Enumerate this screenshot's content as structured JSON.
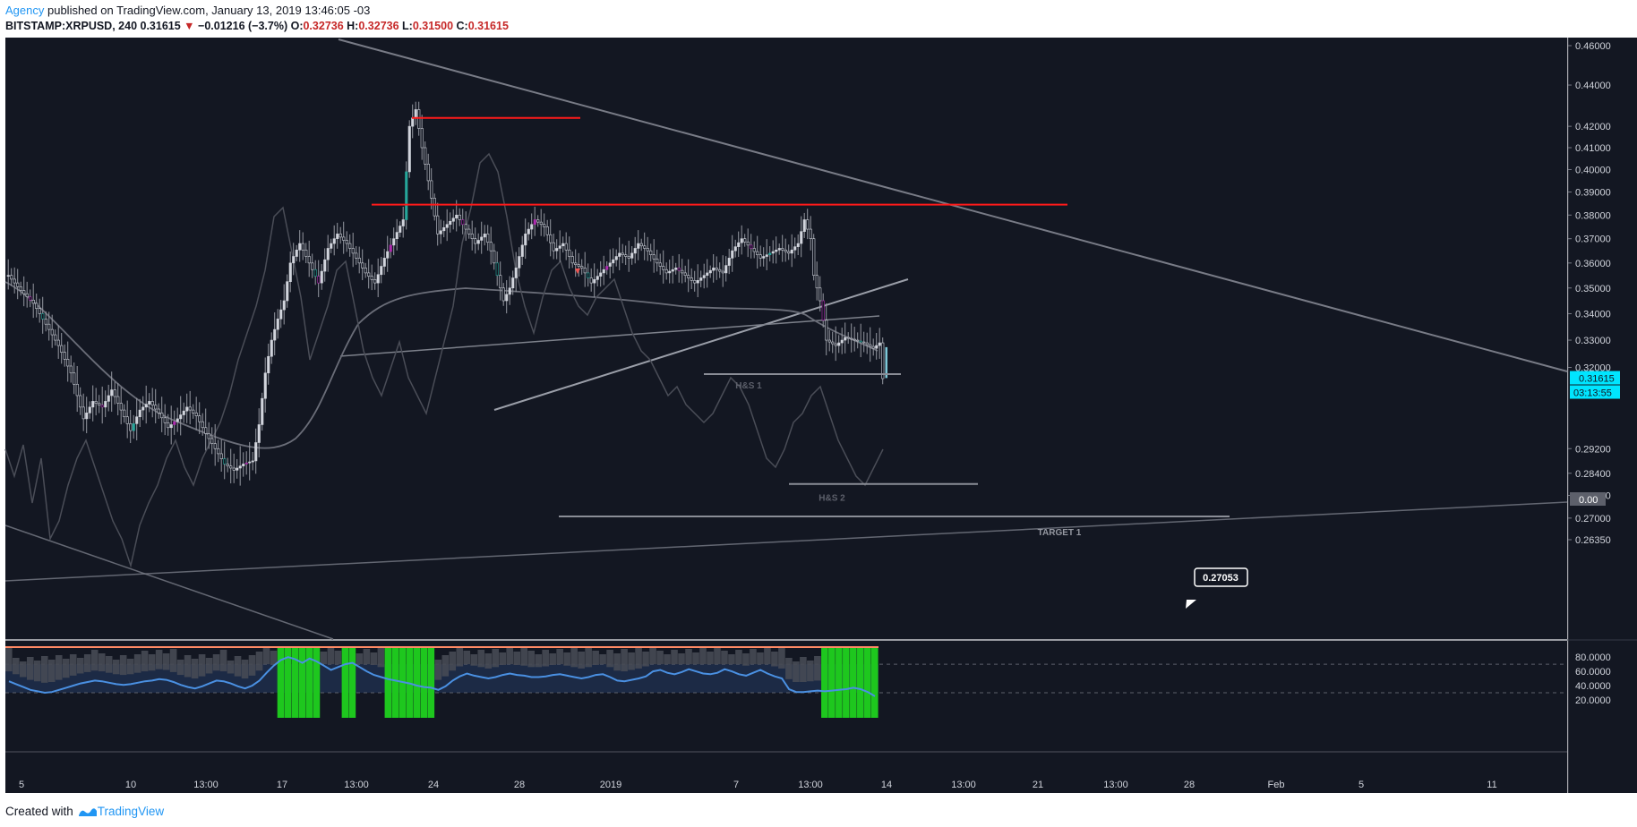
{
  "header": {
    "author": "Agency",
    "published_text": " published on TradingView.com, January 13, 2019 13:46:05 -03"
  },
  "symbol_bar": {
    "symbol": "BITSTAMP:XRPUSD, 240",
    "last": "0.31615",
    "change_arrow": "▼",
    "change": "−0.01216 (−3.7%)",
    "open_label": "O:",
    "open": "0.32736",
    "high_label": "H:",
    "high": "0.32736",
    "low_label": "L:",
    "low": "0.31500",
    "close_label": "C:",
    "close": "0.31615"
  },
  "footer": {
    "created_with": "Created with",
    "brand": "TradingView"
  },
  "colors": {
    "background": "#131722",
    "candle": "#d1d4dc",
    "resistance": "#ff1a1a",
    "trendline": "#787b86",
    "rsi_line": "#4a90e2",
    "volume_up": "#1ec71e",
    "price_tag": "#00e5ff"
  },
  "chart_data": {
    "type": "candlestick",
    "title": "",
    "symbol": "BITSTAMP:XRPUSD",
    "timeframe": "240",
    "price_axis": {
      "scale": "log",
      "ticks": [
        "0.46000",
        "0.44000",
        "0.42000",
        "0.41000",
        "0.40000",
        "0.39000",
        "0.38000",
        "0.37000",
        "0.36000",
        "0.35000",
        "0.34000",
        "0.33000",
        "0.32000",
        "0.29200",
        "0.28400",
        "0.27700",
        "0.27000",
        "0.26350"
      ],
      "current_price": "0.31615",
      "countdown": "03:13:55",
      "secondary_label": "0.00"
    },
    "time_axis": {
      "ticks": [
        "5",
        "10",
        "13:00",
        "17",
        "13:00",
        "24",
        "28",
        "2019",
        "7",
        "13:00",
        "14",
        "13:00",
        "21",
        "13:00",
        "28",
        "Feb",
        "5",
        "11"
      ]
    },
    "series": [
      {
        "name": "XRPUSD 240",
        "price_path": [
          [
            0,
            0.355
          ],
          [
            4,
            0.349
          ],
          [
            8,
            0.344
          ],
          [
            12,
            0.336
          ],
          [
            16,
            0.328
          ],
          [
            20,
            0.318
          ],
          [
            22,
            0.31
          ],
          [
            24,
            0.302
          ],
          [
            27,
            0.308
          ],
          [
            30,
            0.306
          ],
          [
            33,
            0.312
          ],
          [
            36,
            0.305
          ],
          [
            39,
            0.298
          ],
          [
            42,
            0.305
          ],
          [
            45,
            0.308
          ],
          [
            48,
            0.304
          ],
          [
            51,
            0.299
          ],
          [
            54,
            0.302
          ],
          [
            57,
            0.306
          ],
          [
            60,
            0.303
          ],
          [
            63,
            0.297
          ],
          [
            66,
            0.292
          ],
          [
            69,
            0.287
          ],
          [
            72,
            0.285
          ],
          [
            75,
            0.287
          ],
          [
            78,
            0.288
          ],
          [
            80,
            0.3
          ],
          [
            82,
            0.318
          ],
          [
            84,
            0.33
          ],
          [
            86,
            0.338
          ],
          [
            88,
            0.345
          ],
          [
            90,
            0.36
          ],
          [
            93,
            0.368
          ],
          [
            96,
            0.36
          ],
          [
            99,
            0.352
          ],
          [
            102,
            0.366
          ],
          [
            105,
            0.372
          ],
          [
            108,
            0.368
          ],
          [
            111,
            0.362
          ],
          [
            114,
            0.356
          ],
          [
            117,
            0.352
          ],
          [
            120,
            0.362
          ],
          [
            123,
            0.37
          ],
          [
            126,
            0.378
          ],
          [
            128,
            0.42
          ],
          [
            130,
            0.428
          ],
          [
            132,
            0.41
          ],
          [
            134,
            0.395
          ],
          [
            137,
            0.372
          ],
          [
            140,
            0.376
          ],
          [
            143,
            0.38
          ],
          [
            146,
            0.374
          ],
          [
            149,
            0.368
          ],
          [
            152,
            0.372
          ],
          [
            154,
            0.365
          ],
          [
            156,
            0.355
          ],
          [
            158,
            0.345
          ],
          [
            160,
            0.35
          ],
          [
            162,
            0.358
          ],
          [
            165,
            0.372
          ],
          [
            168,
            0.378
          ],
          [
            171,
            0.375
          ],
          [
            174,
            0.365
          ],
          [
            177,
            0.368
          ],
          [
            180,
            0.36
          ],
          [
            183,
            0.358
          ],
          [
            186,
            0.352
          ],
          [
            189,
            0.356
          ],
          [
            192,
            0.36
          ],
          [
            195,
            0.364
          ],
          [
            198,
            0.362
          ],
          [
            201,
            0.368
          ],
          [
            204,
            0.365
          ],
          [
            207,
            0.36
          ],
          [
            210,
            0.356
          ],
          [
            213,
            0.358
          ],
          [
            216,
            0.355
          ],
          [
            219,
            0.352
          ],
          [
            222,
            0.355
          ],
          [
            225,
            0.358
          ],
          [
            228,
            0.356
          ],
          [
            231,
            0.365
          ],
          [
            234,
            0.37
          ],
          [
            237,
            0.366
          ],
          [
            240,
            0.362
          ],
          [
            243,
            0.364
          ],
          [
            246,
            0.366
          ],
          [
            249,
            0.364
          ],
          [
            252,
            0.368
          ],
          [
            254,
            0.378
          ],
          [
            256,
            0.37
          ],
          [
            257,
            0.355
          ],
          [
            259,
            0.345
          ],
          [
            261,
            0.33
          ],
          [
            264,
            0.328
          ],
          [
            267,
            0.331
          ],
          [
            270,
            0.33
          ],
          [
            273,
            0.329
          ],
          [
            276,
            0.327
          ],
          [
            278,
            0.329
          ],
          [
            279,
            0.316
          ]
        ]
      }
    ],
    "annotations": [
      {
        "type": "hline",
        "label": "",
        "price": 0.424,
        "color": "#ff1a1a"
      },
      {
        "type": "hline",
        "label": "",
        "price": 0.3845,
        "color": "#ff1a1a"
      },
      {
        "type": "hline",
        "label": "H&S 1",
        "price": 0.3176
      },
      {
        "type": "hline",
        "label": "H&S 2",
        "price": 0.2806
      },
      {
        "type": "hline",
        "label": "TARGET 1",
        "price": 0.2705
      },
      {
        "type": "callout",
        "label": "0.27053",
        "price": 0.27053
      }
    ],
    "indicator": {
      "name": "RSI",
      "ylim": [
        15,
        85
      ],
      "ticks": [
        "80.0000",
        "60.0000",
        "40.0000",
        "20.0000"
      ],
      "bands": [
        70,
        30
      ],
      "values": [
        46,
        42,
        38,
        34,
        32,
        30,
        31,
        34,
        37,
        40,
        43,
        45,
        47,
        46,
        44,
        42,
        41,
        42,
        44,
        46,
        47,
        49,
        48,
        45,
        41,
        38,
        36,
        39,
        43,
        47,
        46,
        43,
        39,
        36,
        40,
        47,
        58,
        68,
        76,
        80,
        77,
        72,
        78,
        74,
        68,
        62,
        66,
        70,
        72,
        66,
        60,
        55,
        52,
        49,
        47,
        45,
        43,
        40,
        38,
        37,
        34,
        39,
        47,
        53,
        57,
        54,
        52,
        50,
        52,
        55,
        57,
        55,
        54,
        52,
        52,
        53,
        55,
        56,
        54,
        52,
        50,
        52,
        55,
        56,
        52,
        47,
        46,
        48,
        50,
        53,
        60,
        62,
        58,
        56,
        59,
        63,
        60,
        57,
        56,
        58,
        63,
        60,
        56,
        54,
        58,
        62,
        57,
        53,
        50,
        35,
        31,
        31,
        32,
        33,
        32,
        33,
        34,
        35,
        37,
        35,
        31,
        25
      ]
    }
  }
}
